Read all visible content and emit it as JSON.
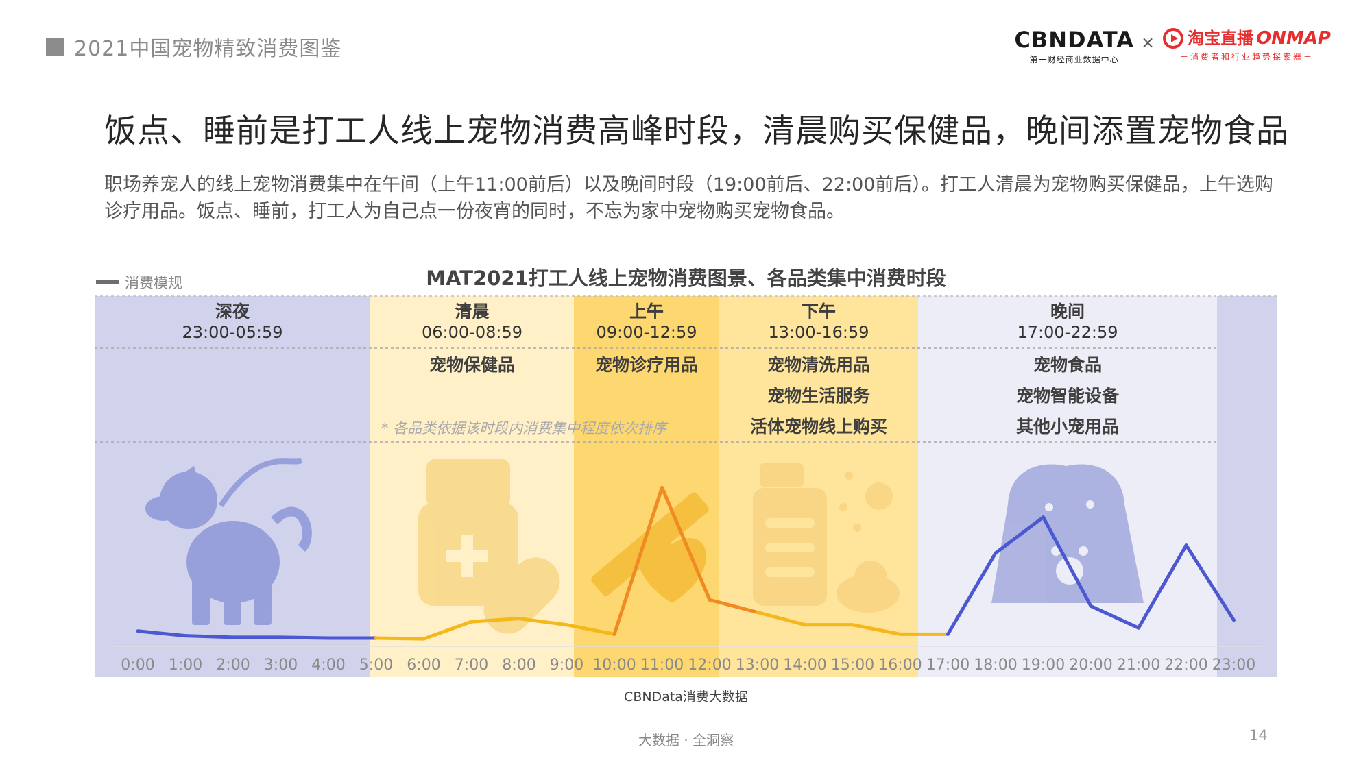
{
  "header": {
    "section_tag": "2021中国宠物精致消费图鉴",
    "logo_cbn": "CBNDATA",
    "logo_cbn_sub": "第一财经商业数据中心",
    "logo_times": "×",
    "logo_taobao": "淘宝直播",
    "logo_taobao_en": "ONMAP",
    "logo_taobao_sub": "－消费者和行业趋势探索器－"
  },
  "headline": "饭点、睡前是打工人线上宠物消费高峰时段，清晨购买保健品，晚间添置宠物食品",
  "description": "职场养宠人的线上宠物消费集中在午间（上午11:00前后）以及晚间时段（19:00前后、22:00前后）。打工人清晨为宠物购买保健品，上午选购诊疗用品。饭点、睡前，打工人为自己点一份夜宵的同时，不忘为家中宠物购买宠物食品。",
  "chart_data": {
    "type": "line",
    "title": "MAT2021打工人线上宠物消费图景、各品类集中消费时段",
    "legend": [
      "消费模规"
    ],
    "legend_position": "top-left",
    "x": [
      "0:00",
      "1:00",
      "2:00",
      "3:00",
      "4:00",
      "5:00",
      "6:00",
      "7:00",
      "8:00",
      "9:00",
      "10:00",
      "11:00",
      "12:00",
      "13:00",
      "14:00",
      "15:00",
      "16:00",
      "17:00",
      "18:00",
      "19:00",
      "20:00",
      "21:00",
      "22:00",
      "23:00"
    ],
    "series": [
      {
        "name": "消费模规",
        "values": [
          8,
          5,
          4,
          4,
          3.5,
          3.5,
          3,
          14,
          16,
          12,
          6,
          100,
          28,
          20,
          12,
          12,
          6,
          6,
          58,
          81,
          24,
          10,
          63,
          15
        ]
      }
    ],
    "ylim": [
      0,
      105
    ],
    "grid": false,
    "periods": [
      {
        "name": "深夜",
        "range": "23:00-05:59",
        "categories": []
      },
      {
        "name": "清晨",
        "range": "06:00-08:59",
        "categories": [
          "宠物保健品"
        ]
      },
      {
        "name": "上午",
        "range": "09:00-12:59",
        "categories": [
          "宠物诊疗用品"
        ]
      },
      {
        "name": "下午",
        "range": "13:00-16:59",
        "categories": [
          "宠物清洗用品",
          "宠物生活服务",
          "活体宠物线上购买"
        ]
      },
      {
        "name": "晚间",
        "range": "17:00-22:59",
        "categories": [
          "宠物食品",
          "宠物智能设备",
          "其他小宠用品"
        ]
      }
    ],
    "note": "* 各品类依据该时段内消费集中程度依次排序",
    "colors": {
      "night": "#d1d2ec",
      "morning": "#fff0c8",
      "forenoon": "#fdd770",
      "afternoon": "#ffe59b",
      "evening": "#ededf7",
      "night_line": "#4b58d0",
      "day_line": "#f5b81c",
      "peak_line": "#f08a23"
    }
  },
  "source": "CBNData消费大数据",
  "footer": "大数据 · 全洞察",
  "page_number": "14"
}
